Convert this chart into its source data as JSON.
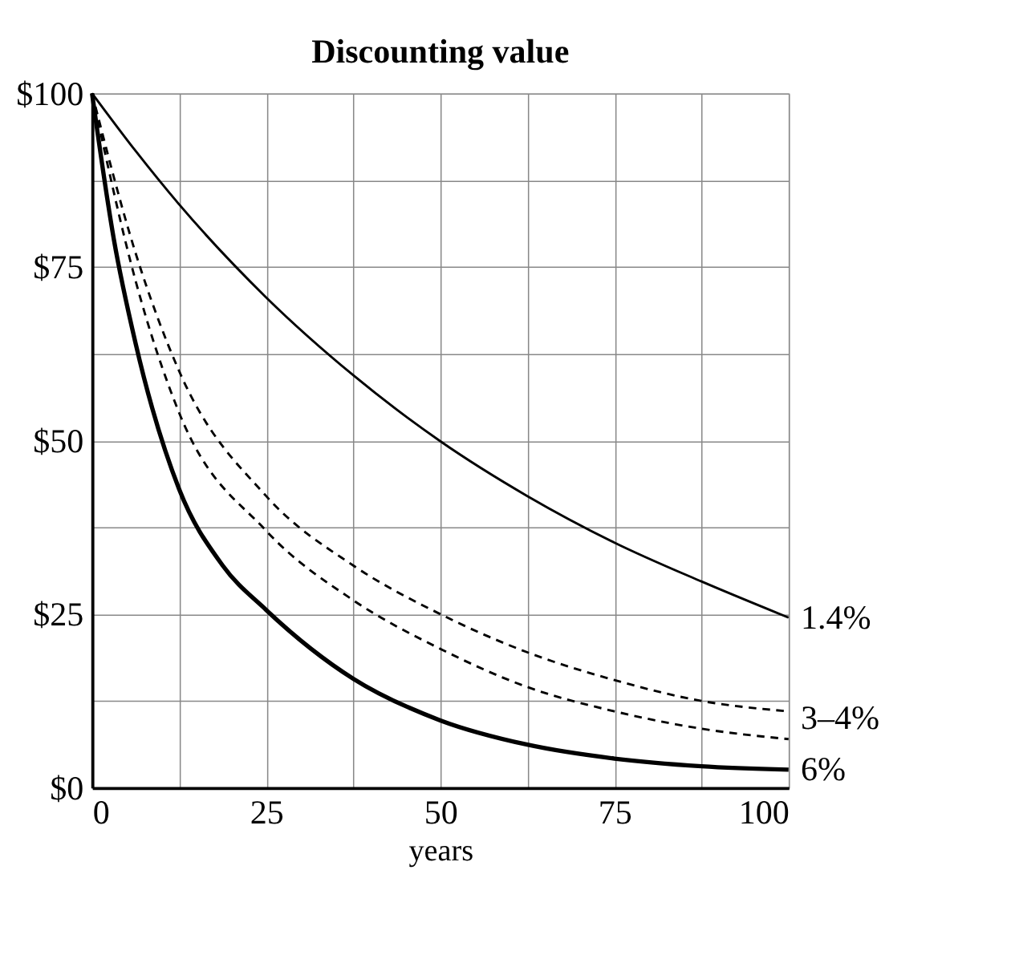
{
  "chart_data": {
    "type": "line",
    "title": "Discounting value",
    "xlabel": "years",
    "x": [
      0,
      6.25,
      12.5,
      25,
      37.5,
      50,
      62.5,
      75,
      87.5,
      100
    ],
    "series": [
      {
        "name": "1.4%",
        "color": "#000000",
        "line_style": "solid",
        "values": [
          100,
          91.7,
          84,
          70.6,
          59.4,
          49.9,
          42,
          35.3,
          29.7,
          24.5
        ]
      },
      {
        "color": "#000000",
        "line_style": "dashed",
        "values": [
          100,
          77,
          60,
          42,
          32,
          25,
          19.5,
          15.5,
          12.5,
          11
        ]
      },
      {
        "color": "#000000",
        "line_style": "dashed",
        "values": [
          100,
          73,
          54,
          37,
          27,
          20,
          14.5,
          11,
          8.5,
          7
        ]
      },
      {
        "name": "6%",
        "color": "#000000",
        "line_style": "solid",
        "x": [
          0,
          3.125,
          6.25,
          12.5,
          18.75,
          25,
          37.5,
          50,
          62.5,
          75,
          87.5,
          100
        ],
        "values": [
          100,
          79,
          64,
          43,
          32,
          25.6,
          15.7,
          9.7,
          6.2,
          4.2,
          3.1,
          2.6
        ]
      }
    ],
    "annotations": [
      {
        "text": "3–4%",
        "x": 100,
        "y": 10
      }
    ],
    "xlim": [
      0,
      100
    ],
    "ylim": [
      0,
      100
    ],
    "xticks": [
      0,
      {
        "value": 12.5,
        "label": null
      },
      25,
      {
        "value": 37.5,
        "label": null
      },
      50,
      {
        "value": 62.5,
        "label": null
      },
      75,
      {
        "value": 87.5,
        "label": null
      },
      100
    ],
    "yticks": [
      {
        "value": 0,
        "label": "$0"
      },
      {
        "value": 12.5,
        "label": null
      },
      {
        "value": 25,
        "label": "$25"
      },
      {
        "value": 37.5,
        "label": null
      },
      {
        "value": 50,
        "label": "$50"
      },
      {
        "value": 62.5,
        "label": null
      },
      {
        "value": 75,
        "label": "$75"
      },
      {
        "value": 87.5,
        "label": null
      },
      {
        "value": 100,
        "label": "$100"
      }
    ],
    "grid": true
  }
}
